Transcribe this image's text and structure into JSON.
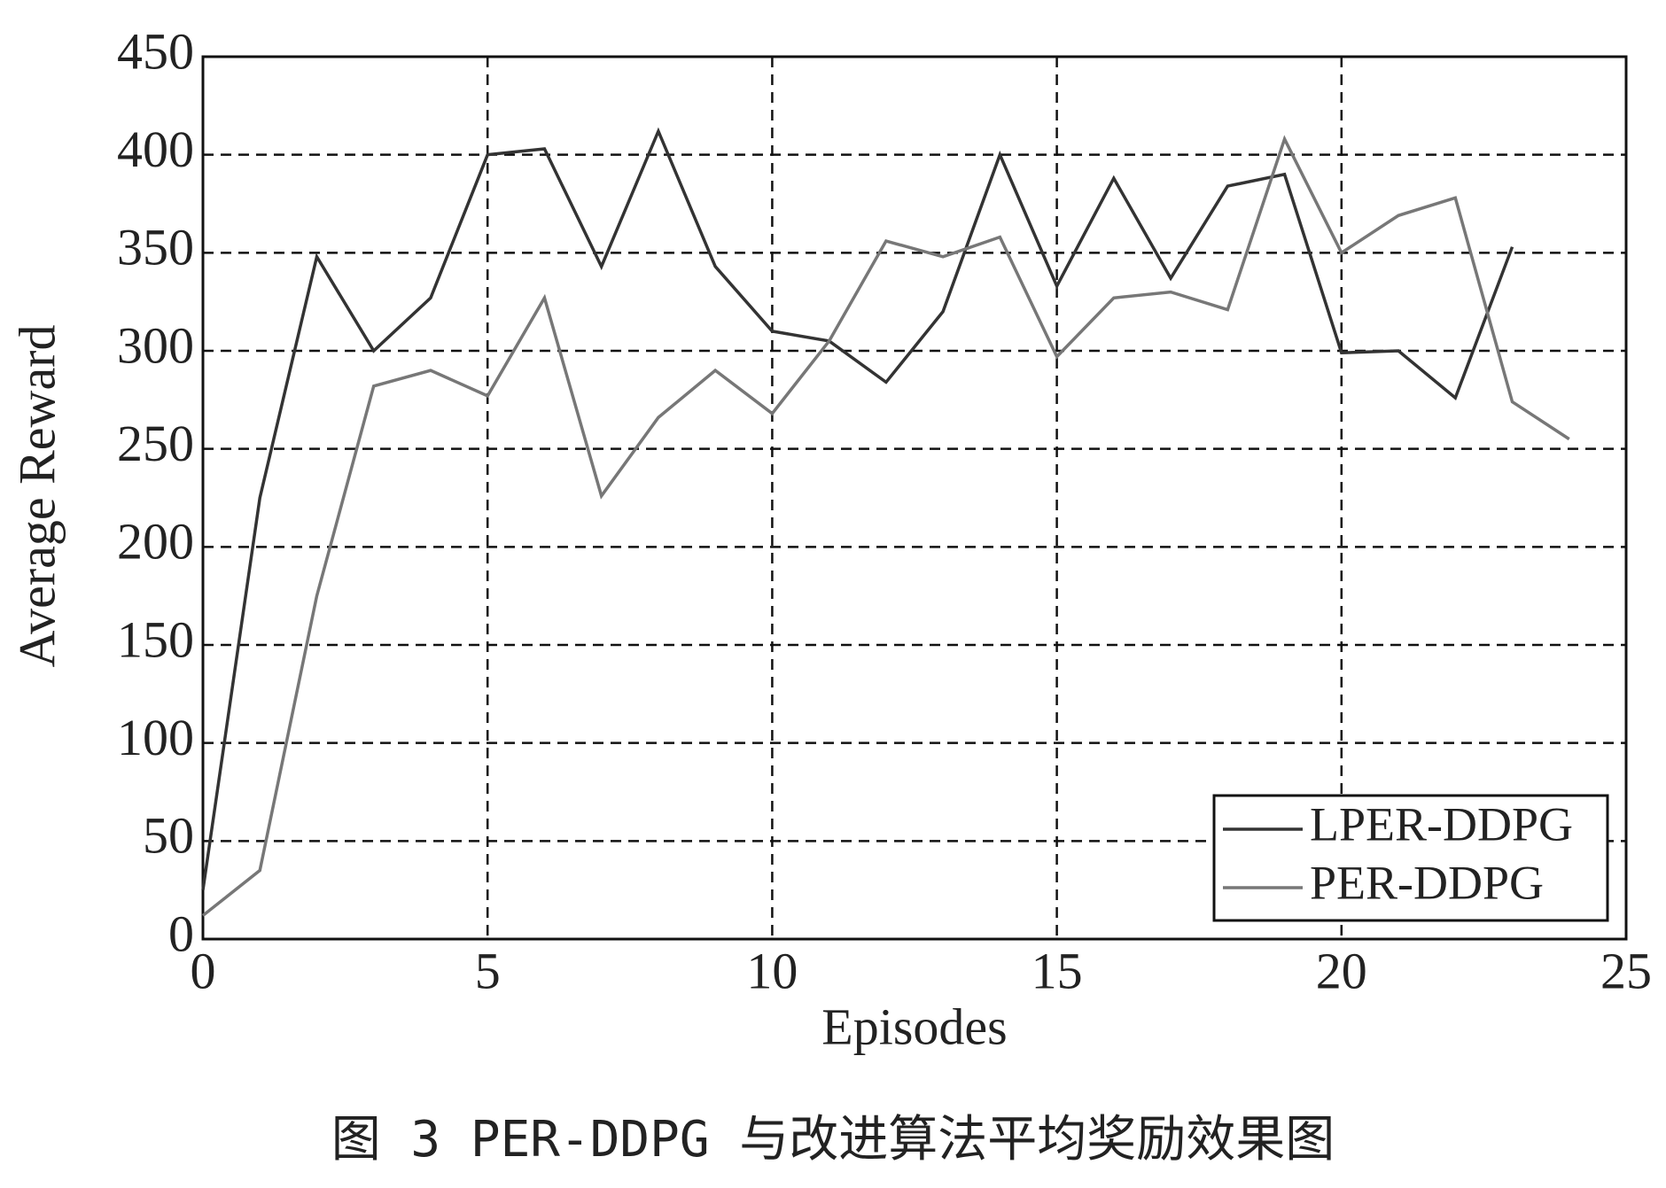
{
  "chart_data": {
    "type": "line",
    "x_label": "Episodes",
    "y_label": "Average Reward",
    "caption": "图 3   PER-DDPG 与改进算法平均奖励效果图",
    "x": [
      0,
      1,
      2,
      3,
      4,
      5,
      6,
      7,
      8,
      9,
      10,
      11,
      12,
      13,
      14,
      15,
      16,
      17,
      18,
      19,
      20,
      21,
      22,
      23,
      24
    ],
    "series": [
      {
        "name": "LPER-DDPG",
        "color": "#333333",
        "values": [
          25,
          225,
          348,
          300,
          327,
          400,
          403,
          343,
          412,
          343,
          310,
          305,
          284,
          320,
          400,
          333,
          388,
          337,
          384,
          390,
          299,
          300,
          276,
          353,
          null
        ]
      },
      {
        "name": "PER-DDPG",
        "color": "#777777",
        "values": [
          12,
          35,
          175,
          282,
          290,
          277,
          327,
          226,
          266,
          290,
          268,
          305,
          356,
          348,
          358,
          297,
          327,
          330,
          321,
          408,
          350,
          369,
          378,
          274,
          255
        ]
      }
    ],
    "xlim": [
      0,
      25
    ],
    "xticks": [
      0,
      5,
      10,
      15,
      20,
      25
    ],
    "ylim": [
      0,
      450
    ],
    "yticks": [
      0,
      50,
      100,
      150,
      200,
      250,
      300,
      350,
      400,
      450
    ],
    "grid": true,
    "legend": "lower-right"
  }
}
